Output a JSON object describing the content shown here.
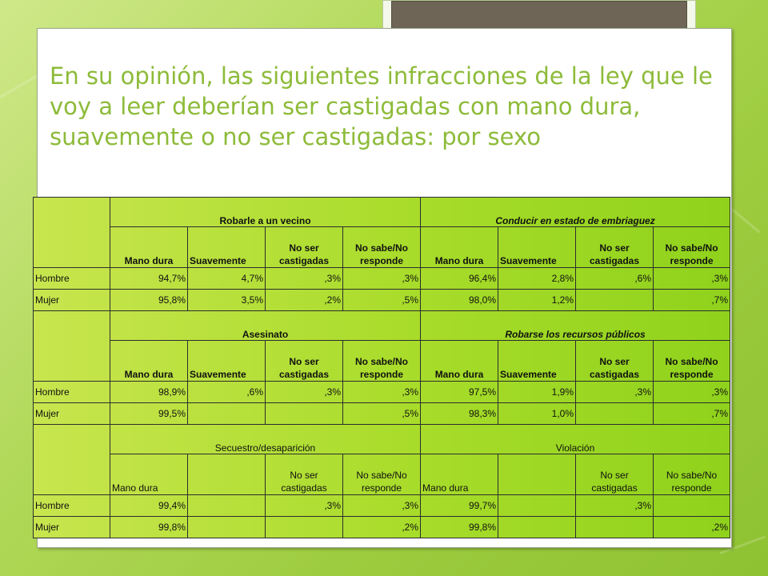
{
  "title": "En su opinión, las siguientes infracciones de la ley que le voy a leer deberían ser castigadas con mano dura, suavemente o no ser castigadas: por sexo",
  "col_headers": [
    "Mano dura",
    "Suavemente",
    "No ser castigadas",
    "No sabe/No responde"
  ],
  "sections": [
    {
      "groups": [
        "Robarle a un vecino",
        "Conducir en estado de embriaguez"
      ],
      "rows": [
        {
          "label": "Hombre",
          "cells": [
            "94,7%",
            "4,7%",
            ",3%",
            ",3%",
            "96,4%",
            "2,8%",
            ",6%",
            ",3%"
          ]
        },
        {
          "label": "Mujer",
          "cells": [
            "95,8%",
            "3,5%",
            ",2%",
            ",5%",
            "98,0%",
            "1,2%",
            "",
            ",7%"
          ]
        }
      ]
    },
    {
      "groups": [
        "Asesinato",
        "Robarse los recursos públicos"
      ],
      "rows": [
        {
          "label": "Hombre",
          "cells": [
            "98,9%",
            ",6%",
            ",3%",
            ",3%",
            "97,5%",
            "1,9%",
            ",3%",
            ",3%"
          ]
        },
        {
          "label": "Mujer",
          "cells": [
            "99,5%",
            "",
            "",
            ",5%",
            "98,3%",
            "1,0%",
            "",
            ",7%"
          ]
        }
      ]
    },
    {
      "groups": [
        "Secuestro/desaparición",
        "Violación"
      ],
      "rows": [
        {
          "label": "Hombre",
          "cells": [
            "99,4%",
            "",
            ",3%",
            ",3%",
            "99,7%",
            "",
            ",3%",
            ""
          ]
        },
        {
          "label": "Mujer",
          "cells": [
            "99,8%",
            "",
            "",
            ",2%",
            "99,8%",
            "",
            "",
            ",2%"
          ]
        }
      ]
    }
  ]
}
